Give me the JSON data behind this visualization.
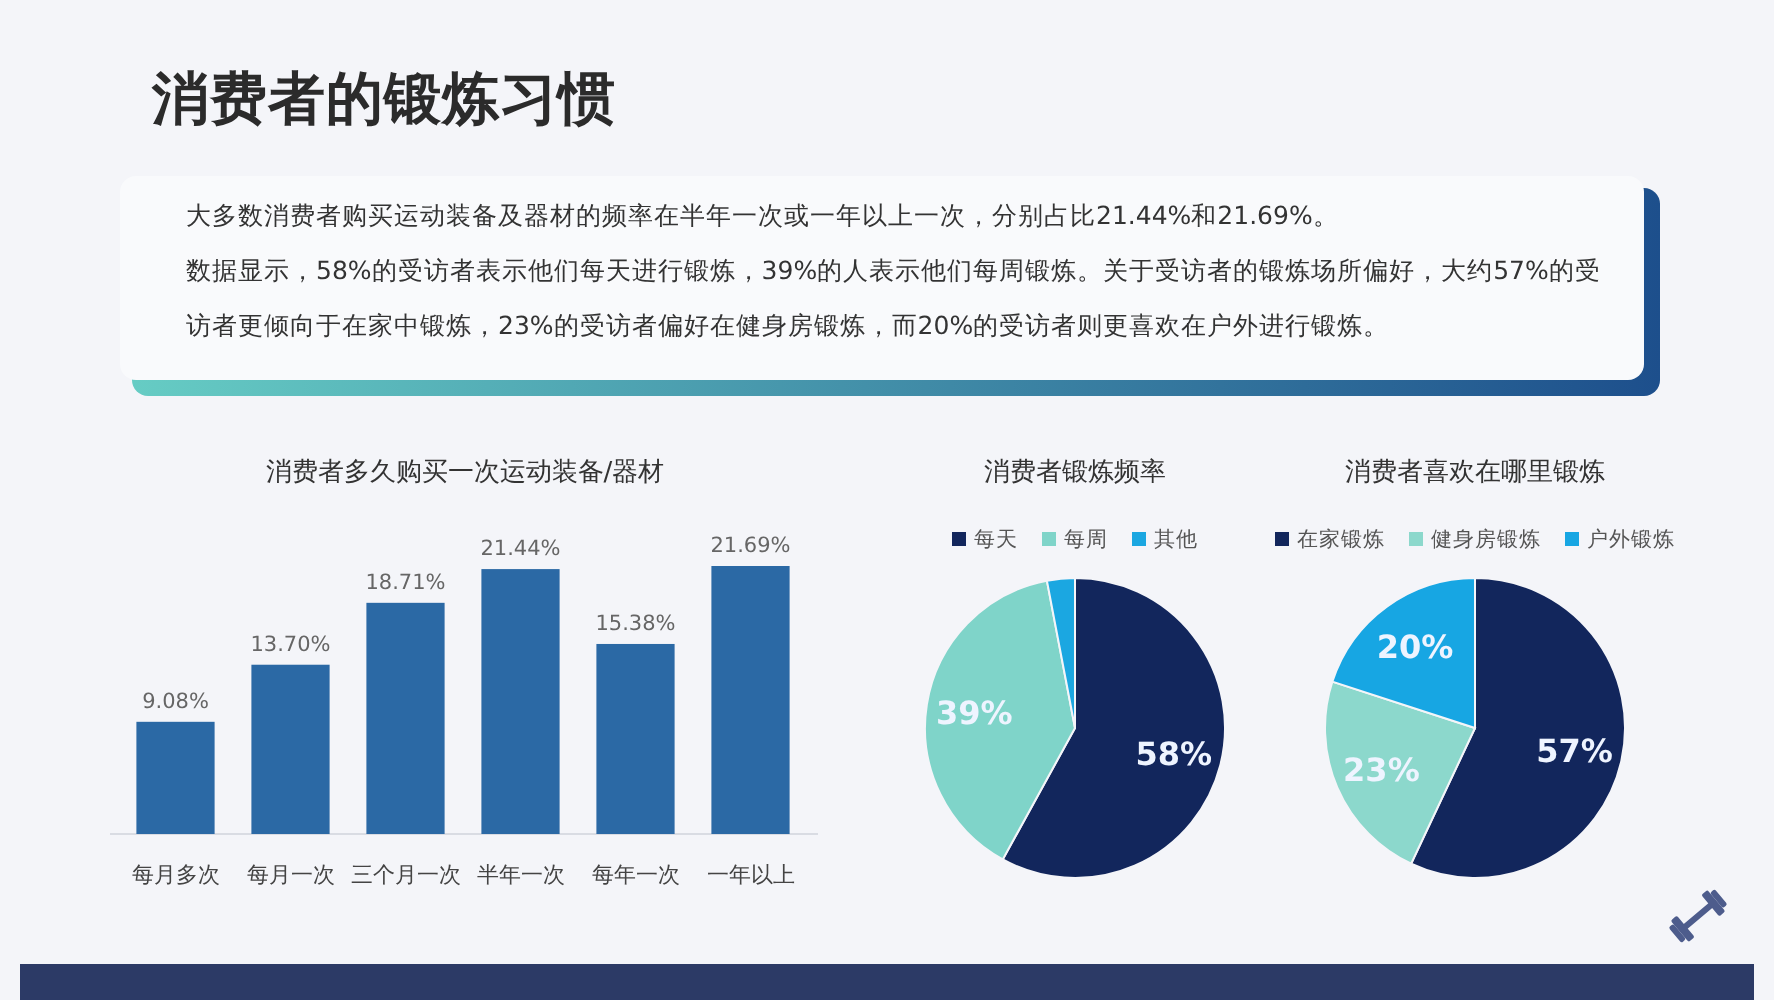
{
  "chart_data": [
    {
      "type": "other",
      "title": "消费者的锻炼习惯",
      "annotations": [
        "大多数消费者购买运动装备及器材的频率在半年一次或一年以上一次，分别占比21.44%和21.69%。",
        "数据显示，58%的受访者表示他们每天进行锻炼，39%的人表示他们每周锻炼。关于受访者的锻炼场所偏好，大约57%的受访者更倾向于在家中锻炼，23%的受访者偏好在健身房锻炼，而20%的受访者则更喜欢在户外进行锻炼。"
      ]
    },
    {
      "type": "bar",
      "title": "消费者多久购买一次运动装备/器材",
      "categories": [
        "每月多次",
        "每月一次",
        "三个月一次",
        "半年一次",
        "每年一次",
        "一年以上"
      ],
      "values": [
        9.08,
        13.7,
        18.71,
        21.44,
        15.38,
        21.69
      ],
      "color": "#2b69a5",
      "value_labels": [
        "9.08%",
        "13.70%",
        "18.71%",
        "21.44%",
        "15.38%",
        "21.69%"
      ]
    },
    {
      "type": "pie",
      "title": "消费者锻炼频率",
      "categories": [
        "每天",
        "每周",
        "其他"
      ],
      "values": [
        58,
        39,
        3
      ],
      "colors": [
        "#12265c",
        "#7fd4c9",
        "#1ba7e1"
      ],
      "value_labels": [
        "58%",
        "39%",
        null
      ],
      "legend": "top"
    },
    {
      "type": "pie",
      "title": "消费者喜欢在哪里锻炼",
      "categories": [
        "在家锻炼",
        "健身房锻炼",
        "户外锻炼"
      ],
      "values": [
        57,
        23,
        20
      ],
      "colors": [
        "#12265c",
        "#8cd8cc",
        "#17a6e3"
      ],
      "value_labels": [
        "57%",
        "23%",
        "20%"
      ],
      "legend": "top"
    }
  ]
}
